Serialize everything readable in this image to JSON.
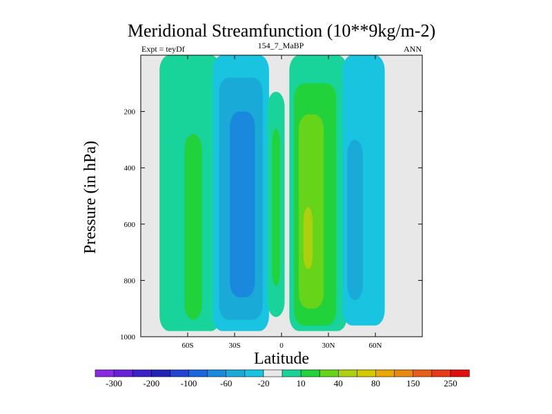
{
  "chart_data": {
    "type": "contour",
    "title": "Meridional Streamfunction (10**9kg/m-2)",
    "left_subtitle": "Expt = teyDf",
    "center_subtitle": "154_7_MaBP",
    "right_subtitle": "ANN",
    "xlabel": "Latitude",
    "ylabel": "Pressure (in hPa)",
    "xlim": [
      -90,
      90
    ],
    "ylim": [
      0,
      1000
    ],
    "y_inverted": true,
    "x_ticks": [
      {
        "value": -60,
        "label": "60S"
      },
      {
        "value": -30,
        "label": "30S"
      },
      {
        "value": 0,
        "label": "0"
      },
      {
        "value": 30,
        "label": "30N"
      },
      {
        "value": 60,
        "label": "60N"
      }
    ],
    "y_ticks": [
      {
        "value": 200,
        "label": "200"
      },
      {
        "value": 400,
        "label": "400"
      },
      {
        "value": 600,
        "label": "600"
      },
      {
        "value": 800,
        "label": "800"
      },
      {
        "value": 1000,
        "label": "1000"
      }
    ],
    "colorbar": {
      "colors": [
        "#8a2be2",
        "#6a1fd8",
        "#3a22c8",
        "#2222b4",
        "#2244d4",
        "#1a66dd",
        "#1a88dd",
        "#1aaad8",
        "#18c4e0",
        "#e8e8e8",
        "#18d49a",
        "#22d23a",
        "#66d418",
        "#aad010",
        "#d4c800",
        "#e8a800",
        "#e88a10",
        "#e86018",
        "#e83a18",
        "#e01010"
      ],
      "labels": [
        {
          "boundary": 1,
          "text": "-300"
        },
        {
          "boundary": 3,
          "text": "-200"
        },
        {
          "boundary": 5,
          "text": "-100"
        },
        {
          "boundary": 7,
          "text": "-60"
        },
        {
          "boundary": 9,
          "text": "-20"
        },
        {
          "boundary": 11,
          "text": "10"
        },
        {
          "boundary": 13,
          "text": "40"
        },
        {
          "boundary": 15,
          "text": "80"
        },
        {
          "boundary": 17,
          "text": "150"
        },
        {
          "boundary": 19,
          "text": "250"
        }
      ]
    },
    "contour_regions": [
      {
        "name": "sh-outer-cell",
        "level": 10,
        "color": "#18d49a",
        "lat_range": [
          -78,
          -39
        ],
        "p_range": [
          0,
          980
        ]
      },
      {
        "name": "sh-outer-core",
        "level": 40,
        "color": "#22d23a",
        "lat_range": [
          -62,
          -51
        ],
        "p_range": [
          280,
          940
        ]
      },
      {
        "name": "sh-ferrel-cell",
        "level": -20,
        "color": "#18c4e0",
        "lat_range": [
          -44,
          -8
        ],
        "p_range": [
          0,
          980
        ]
      },
      {
        "name": "sh-ferrel-mid",
        "level": -60,
        "color": "#1aaad8",
        "lat_range": [
          -40,
          -12
        ],
        "p_range": [
          80,
          940
        ]
      },
      {
        "name": "sh-ferrel-core",
        "level": -100,
        "color": "#1a88dd",
        "lat_range": [
          -33,
          -17
        ],
        "p_range": [
          200,
          860
        ]
      },
      {
        "name": "equatorial-cell",
        "level": 10,
        "color": "#18d49a",
        "lat_range": [
          -9,
          2
        ],
        "p_range": [
          130,
          930
        ]
      },
      {
        "name": "equatorial-core",
        "level": 40,
        "color": "#22d23a",
        "lat_range": [
          -6,
          -1
        ],
        "p_range": [
          260,
          820
        ]
      },
      {
        "name": "hadley-cell",
        "level": 10,
        "color": "#18d49a",
        "lat_range": [
          5,
          42
        ],
        "p_range": [
          0,
          980
        ]
      },
      {
        "name": "hadley-mid",
        "level": 40,
        "color": "#22d23a",
        "lat_range": [
          8,
          35
        ],
        "p_range": [
          100,
          960
        ]
      },
      {
        "name": "hadley-core",
        "level": 80,
        "color": "#66d418",
        "lat_range": [
          11,
          27
        ],
        "p_range": [
          210,
          900
        ]
      },
      {
        "name": "hadley-inner",
        "level": 150,
        "color": "#aad010",
        "lat_range": [
          14,
          20
        ],
        "p_range": [
          540,
          760
        ]
      },
      {
        "name": "nh-ferrel-cell",
        "level": -20,
        "color": "#18c4e0",
        "lat_range": [
          39,
          66
        ],
        "p_range": [
          0,
          960
        ]
      },
      {
        "name": "nh-ferrel-core",
        "level": -60,
        "color": "#1aaad8",
        "lat_range": [
          42,
          52
        ],
        "p_range": [
          300,
          870
        ]
      }
    ]
  }
}
